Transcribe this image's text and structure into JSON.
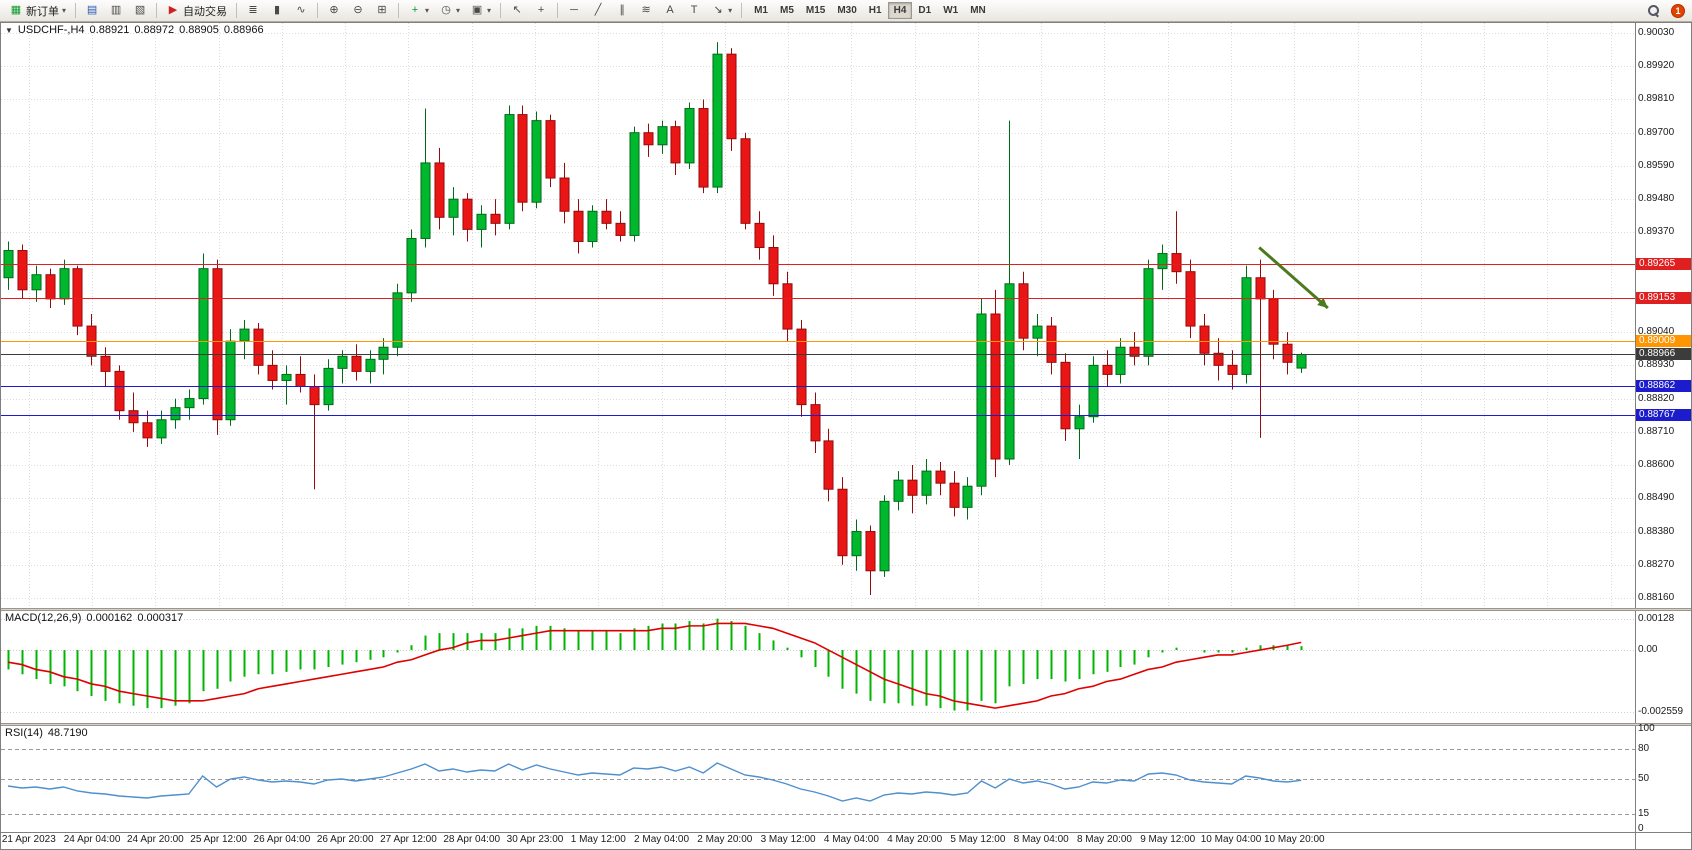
{
  "toolbar": {
    "new_order_label": "新订单",
    "auto_trading_label": "自动交易",
    "timeframes": [
      "M1",
      "M5",
      "M15",
      "M30",
      "H1",
      "H4",
      "D1",
      "W1",
      "MN"
    ],
    "active_timeframe": "H4",
    "badge_count": "1",
    "icons": {
      "new_order": "▦",
      "dropdown": "▾",
      "market_watch": "▤",
      "data_window": "▥",
      "navigator": "▧",
      "auto_trading_play": "▶",
      "bar_chart": "≣",
      "candlestick_chart": "▮",
      "line_chart": "∿",
      "zoom_in": "⊕",
      "zoom_out": "⊖",
      "tile_windows": "⊞",
      "indicators": "+",
      "periods": "◷",
      "templates": "▣",
      "cursor": "↖",
      "crosshair": "+",
      "horizontal_line": "─",
      "trendline": "╱",
      "channel": "∥",
      "fibonacci": "≋",
      "text": "A",
      "label": "T",
      "arrows": "↘"
    }
  },
  "chart": {
    "collapse_icon": "▼",
    "symbol": "USDCHF-,H4",
    "open": "0.88921",
    "high": "0.88972",
    "low": "0.88905",
    "close": "0.88966"
  },
  "indicators": {
    "macd": {
      "label": "MACD(12,26,9)",
      "value_main": "0.000162",
      "value_signal": "0.000317"
    },
    "rsi": {
      "label": "RSI(14)",
      "value": "48.7190"
    }
  },
  "chart_data": {
    "main": {
      "type": "candlestick",
      "title": "USDCHF-,H4",
      "y_min": 0.8816,
      "y_max": 0.9003,
      "y_ticks": [
        "0.90030",
        "0.89920",
        "0.89810",
        "0.89700",
        "0.89590",
        "0.89480",
        "0.89370",
        "0.89040",
        "0.88930",
        "0.88820",
        "0.88710",
        "0.88600",
        "0.88490",
        "0.88380",
        "0.88270",
        "0.88160"
      ],
      "levels": [
        {
          "price": 0.89265,
          "label": "0.89265",
          "color": "#e02020",
          "text_color": "#ffffff",
          "kind": "resistance"
        },
        {
          "price": 0.89153,
          "label": "0.89153",
          "color": "#e02020",
          "text_color": "#ffffff",
          "kind": "resistance"
        },
        {
          "price": 0.89009,
          "label": "0.89009",
          "color": "#ff9500",
          "text_color": "#ffffff",
          "kind": "pivot"
        },
        {
          "price": 0.88966,
          "label": "0.88966",
          "color": "#3c3c3c",
          "text_color": "#ffffff",
          "kind": "bid"
        },
        {
          "price": 0.88862,
          "label": "0.88862",
          "color": "#1c1ccc",
          "text_color": "#ffffff",
          "kind": "support"
        },
        {
          "price": 0.88767,
          "label": "0.88767",
          "color": "#1c1ccc",
          "text_color": "#ffffff",
          "kind": "support"
        }
      ],
      "colors": {
        "up": "#00b82e",
        "up_border": "#006b18",
        "down": "#ea1616",
        "down_border": "#950b0b",
        "grid": "#dcdcdc"
      },
      "arrow": {
        "x1f": 0.77,
        "p1": 0.8932,
        "x2f": 0.812,
        "p2": 0.8912,
        "color": "#4e7a1f"
      },
      "x_labels": [
        "21 Apr 2023",
        "24 Apr 04:00",
        "24 Apr 20:00",
        "25 Apr 12:00",
        "26 Apr 04:00",
        "26 Apr 20:00",
        "27 Apr 12:00",
        "28 Apr 04:00",
        "30 Apr 23:00",
        "1 May 12:00",
        "2 May 04:00",
        "2 May 20:00",
        "3 May 12:00",
        "4 May 04:00",
        "4 May 20:00",
        "5 May 12:00",
        "8 May 04:00",
        "8 May 20:00",
        "9 May 12:00",
        "10 May 04:00",
        "10 May 20:00"
      ],
      "candles": [
        [
          0.8922,
          0.8934,
          0.8918,
          0.8931
        ],
        [
          0.8931,
          0.8933,
          0.8915,
          0.8918
        ],
        [
          0.8918,
          0.8926,
          0.8914,
          0.8923
        ],
        [
          0.8923,
          0.8925,
          0.8912,
          0.8915
        ],
        [
          0.8915,
          0.8928,
          0.8913,
          0.8925
        ],
        [
          0.8925,
          0.8926,
          0.8903,
          0.8906
        ],
        [
          0.8906,
          0.891,
          0.8893,
          0.8896
        ],
        [
          0.8896,
          0.8899,
          0.8886,
          0.8891
        ],
        [
          0.8891,
          0.8893,
          0.8875,
          0.8878
        ],
        [
          0.8878,
          0.8884,
          0.8871,
          0.8874
        ],
        [
          0.8874,
          0.8878,
          0.8866,
          0.8869
        ],
        [
          0.8869,
          0.8878,
          0.8867,
          0.8875
        ],
        [
          0.8875,
          0.8882,
          0.8872,
          0.8879
        ],
        [
          0.8879,
          0.8885,
          0.8875,
          0.8882
        ],
        [
          0.8882,
          0.893,
          0.888,
          0.8925
        ],
        [
          0.8925,
          0.8928,
          0.887,
          0.8875
        ],
        [
          0.8875,
          0.8905,
          0.8873,
          0.8901
        ],
        [
          0.8901,
          0.8908,
          0.8895,
          0.8905
        ],
        [
          0.8905,
          0.8907,
          0.889,
          0.8893
        ],
        [
          0.8893,
          0.8898,
          0.8885,
          0.8888
        ],
        [
          0.8888,
          0.8893,
          0.888,
          0.889
        ],
        [
          0.889,
          0.8896,
          0.8884,
          0.8886
        ],
        [
          0.8886,
          0.889,
          0.8852,
          0.888
        ],
        [
          0.888,
          0.8895,
          0.8878,
          0.8892
        ],
        [
          0.8892,
          0.8898,
          0.8887,
          0.8896
        ],
        [
          0.8896,
          0.89,
          0.8888,
          0.8891
        ],
        [
          0.8891,
          0.8898,
          0.8887,
          0.8895
        ],
        [
          0.8895,
          0.8902,
          0.889,
          0.8899
        ],
        [
          0.8899,
          0.892,
          0.8896,
          0.8917
        ],
        [
          0.8917,
          0.8938,
          0.8914,
          0.8935
        ],
        [
          0.8935,
          0.8978,
          0.8932,
          0.896
        ],
        [
          0.896,
          0.8965,
          0.8938,
          0.8942
        ],
        [
          0.8942,
          0.8952,
          0.8936,
          0.8948
        ],
        [
          0.8948,
          0.895,
          0.8934,
          0.8938
        ],
        [
          0.8938,
          0.8946,
          0.8932,
          0.8943
        ],
        [
          0.8943,
          0.8948,
          0.8936,
          0.894
        ],
        [
          0.894,
          0.8979,
          0.8938,
          0.8976
        ],
        [
          0.8976,
          0.8979,
          0.8944,
          0.8947
        ],
        [
          0.8947,
          0.8977,
          0.8945,
          0.8974
        ],
        [
          0.8974,
          0.8976,
          0.8952,
          0.8955
        ],
        [
          0.8955,
          0.896,
          0.894,
          0.8944
        ],
        [
          0.8944,
          0.8948,
          0.893,
          0.8934
        ],
        [
          0.8934,
          0.8946,
          0.8932,
          0.8944
        ],
        [
          0.8944,
          0.8948,
          0.8938,
          0.894
        ],
        [
          0.894,
          0.8944,
          0.8934,
          0.8936
        ],
        [
          0.8936,
          0.8972,
          0.8934,
          0.897
        ],
        [
          0.897,
          0.8973,
          0.8962,
          0.8966
        ],
        [
          0.8966,
          0.8974,
          0.8963,
          0.8972
        ],
        [
          0.8972,
          0.8974,
          0.8956,
          0.896
        ],
        [
          0.896,
          0.898,
          0.8958,
          0.8978
        ],
        [
          0.8978,
          0.8981,
          0.895,
          0.8952
        ],
        [
          0.8952,
          0.9,
          0.895,
          0.8996
        ],
        [
          0.8996,
          0.8998,
          0.8964,
          0.8968
        ],
        [
          0.8968,
          0.897,
          0.8938,
          0.894
        ],
        [
          0.894,
          0.8944,
          0.8928,
          0.8932
        ],
        [
          0.8932,
          0.8936,
          0.8916,
          0.892
        ],
        [
          0.892,
          0.8924,
          0.8901,
          0.8905
        ],
        [
          0.8905,
          0.8908,
          0.8876,
          0.888
        ],
        [
          0.888,
          0.8884,
          0.8864,
          0.8868
        ],
        [
          0.8868,
          0.8872,
          0.8848,
          0.8852
        ],
        [
          0.8852,
          0.8856,
          0.8827,
          0.883
        ],
        [
          0.883,
          0.8842,
          0.8825,
          0.8838
        ],
        [
          0.8838,
          0.884,
          0.8817,
          0.8825
        ],
        [
          0.8825,
          0.885,
          0.8823,
          0.8848
        ],
        [
          0.8848,
          0.8858,
          0.8845,
          0.8855
        ],
        [
          0.8855,
          0.886,
          0.8844,
          0.885
        ],
        [
          0.885,
          0.8862,
          0.8847,
          0.8858
        ],
        [
          0.8858,
          0.8861,
          0.885,
          0.8854
        ],
        [
          0.8854,
          0.8858,
          0.8843,
          0.8846
        ],
        [
          0.8846,
          0.8856,
          0.8842,
          0.8853
        ],
        [
          0.8853,
          0.8915,
          0.885,
          0.891
        ],
        [
          0.891,
          0.8918,
          0.8856,
          0.8862
        ],
        [
          0.8862,
          0.8974,
          0.886,
          0.892
        ],
        [
          0.892,
          0.8924,
          0.8898,
          0.8902
        ],
        [
          0.8902,
          0.891,
          0.8896,
          0.8906
        ],
        [
          0.8906,
          0.8909,
          0.889,
          0.8894
        ],
        [
          0.8894,
          0.8897,
          0.8868,
          0.8872
        ],
        [
          0.8872,
          0.888,
          0.8862,
          0.8876
        ],
        [
          0.8876,
          0.8896,
          0.8874,
          0.8893
        ],
        [
          0.8893,
          0.8898,
          0.8886,
          0.889
        ],
        [
          0.889,
          0.8902,
          0.8887,
          0.8899
        ],
        [
          0.8899,
          0.8904,
          0.8893,
          0.8896
        ],
        [
          0.8896,
          0.8928,
          0.8893,
          0.8925
        ],
        [
          0.8925,
          0.8933,
          0.8918,
          0.893
        ],
        [
          0.893,
          0.8944,
          0.892,
          0.8924
        ],
        [
          0.8924,
          0.8928,
          0.8902,
          0.8906
        ],
        [
          0.8906,
          0.891,
          0.8893,
          0.8897
        ],
        [
          0.8897,
          0.8902,
          0.8888,
          0.8893
        ],
        [
          0.8893,
          0.8898,
          0.8885,
          0.889
        ],
        [
          0.889,
          0.8926,
          0.8887,
          0.8922
        ],
        [
          0.8922,
          0.8928,
          0.8869,
          0.8915
        ],
        [
          0.8915,
          0.8918,
          0.8895,
          0.89
        ],
        [
          0.89,
          0.8904,
          0.889,
          0.8894
        ],
        [
          0.88921,
          0.88972,
          0.88905,
          0.88966
        ]
      ]
    },
    "macd": {
      "type": "bar",
      "label": "MACD(12,26,9)",
      "values_display": [
        "0.000162",
        "0.000317"
      ],
      "y_min": -0.00285,
      "y_max": 0.00145,
      "y_ticks": [
        "0.00128",
        "0.00",
        "-0.002559"
      ],
      "colors": {
        "histogram": "#00b400",
        "signal": "#e00000"
      },
      "histogram": [
        -0.0008,
        -0.001,
        -0.0012,
        -0.0014,
        -0.0015,
        -0.0017,
        -0.0019,
        -0.0021,
        -0.0022,
        -0.0023,
        -0.0024,
        -0.0024,
        -0.0023,
        -0.0022,
        -0.0017,
        -0.0016,
        -0.0013,
        -0.0011,
        -0.001,
        -0.001,
        -0.0009,
        -0.0008,
        -0.0008,
        -0.0007,
        -0.0006,
        -0.0005,
        -0.0004,
        -0.0003,
        -0.0001,
        0.0002,
        0.0006,
        0.0007,
        0.0007,
        0.0007,
        0.0007,
        0.0007,
        0.0009,
        0.0009,
        0.001,
        0.001,
        0.0009,
        0.0008,
        0.0008,
        0.0008,
        0.0007,
        0.0009,
        0.001,
        0.0011,
        0.0011,
        0.0012,
        0.0011,
        0.0013,
        0.0012,
        0.001,
        0.0007,
        0.0004,
        0.0001,
        -0.0003,
        -0.0007,
        -0.0011,
        -0.0016,
        -0.0018,
        -0.0021,
        -0.0022,
        -0.0022,
        -0.0023,
        -0.0023,
        -0.0024,
        -0.0025,
        -0.0025,
        -0.0021,
        -0.0022,
        -0.0015,
        -0.0014,
        -0.0012,
        -0.0012,
        -0.0013,
        -0.0012,
        -0.001,
        -0.0009,
        -0.0007,
        -0.0006,
        -0.0003,
        -0.0001,
        0.0001,
        0.0,
        -0.0001,
        -0.0001,
        -0.0001,
        0.0001,
        0.0002,
        0.0002,
        0.0002,
        0.000162
      ],
      "signal": [
        -0.0005,
        -0.0006,
        -0.0008,
        -0.0009,
        -0.0011,
        -0.0012,
        -0.0014,
        -0.0015,
        -0.0017,
        -0.0018,
        -0.0019,
        -0.002,
        -0.0021,
        -0.0021,
        -0.0021,
        -0.002,
        -0.0019,
        -0.0018,
        -0.0016,
        -0.0015,
        -0.0014,
        -0.0013,
        -0.0012,
        -0.0011,
        -0.001,
        -0.0009,
        -0.0008,
        -0.0007,
        -0.0005,
        -0.0004,
        -0.0002,
        0.0,
        0.0001,
        0.0003,
        0.0004,
        0.0004,
        0.0005,
        0.0006,
        0.0007,
        0.0008,
        0.0008,
        0.0008,
        0.0008,
        0.0008,
        0.0008,
        0.0008,
        0.0008,
        0.0009,
        0.0009,
        0.001,
        0.001,
        0.0011,
        0.0011,
        0.0011,
        0.001,
        0.0009,
        0.0007,
        0.0005,
        0.0003,
        0.0,
        -0.0003,
        -0.0006,
        -0.0009,
        -0.0012,
        -0.0014,
        -0.0016,
        -0.0018,
        -0.0019,
        -0.0021,
        -0.0022,
        -0.0023,
        -0.0024,
        -0.0023,
        -0.0022,
        -0.0021,
        -0.0019,
        -0.0018,
        -0.0016,
        -0.0015,
        -0.0013,
        -0.0012,
        -0.001,
        -0.0008,
        -0.0007,
        -0.0005,
        -0.0004,
        -0.0003,
        -0.0002,
        -0.0002,
        -0.0001,
        0.0,
        0.0001,
        0.0002,
        0.000317
      ]
    },
    "rsi": {
      "type": "line",
      "label": "RSI(14)",
      "value_display": "48.7190",
      "y_ticks": [
        "100",
        "80",
        "50",
        "15",
        "0"
      ],
      "level_lines": [
        80,
        50,
        15
      ],
      "colors": {
        "line": "#4f8fce"
      },
      "values": [
        43,
        41,
        42,
        40,
        42,
        38,
        36,
        35,
        33,
        32,
        31,
        33,
        34,
        35,
        53,
        42,
        50,
        52,
        49,
        47,
        48,
        47,
        45,
        49,
        50,
        48,
        50,
        52,
        56,
        60,
        65,
        58,
        60,
        57,
        59,
        58,
        65,
        59,
        64,
        60,
        57,
        54,
        56,
        55,
        54,
        61,
        60,
        62,
        58,
        62,
        56,
        66,
        60,
        54,
        52,
        49,
        45,
        40,
        37,
        33,
        28,
        31,
        28,
        34,
        36,
        35,
        37,
        36,
        34,
        36,
        48,
        41,
        50,
        46,
        48,
        45,
        40,
        42,
        47,
        46,
        49,
        48,
        55,
        56,
        54,
        49,
        47,
        46,
        45,
        53,
        51,
        48,
        47,
        48.719
      ]
    }
  }
}
